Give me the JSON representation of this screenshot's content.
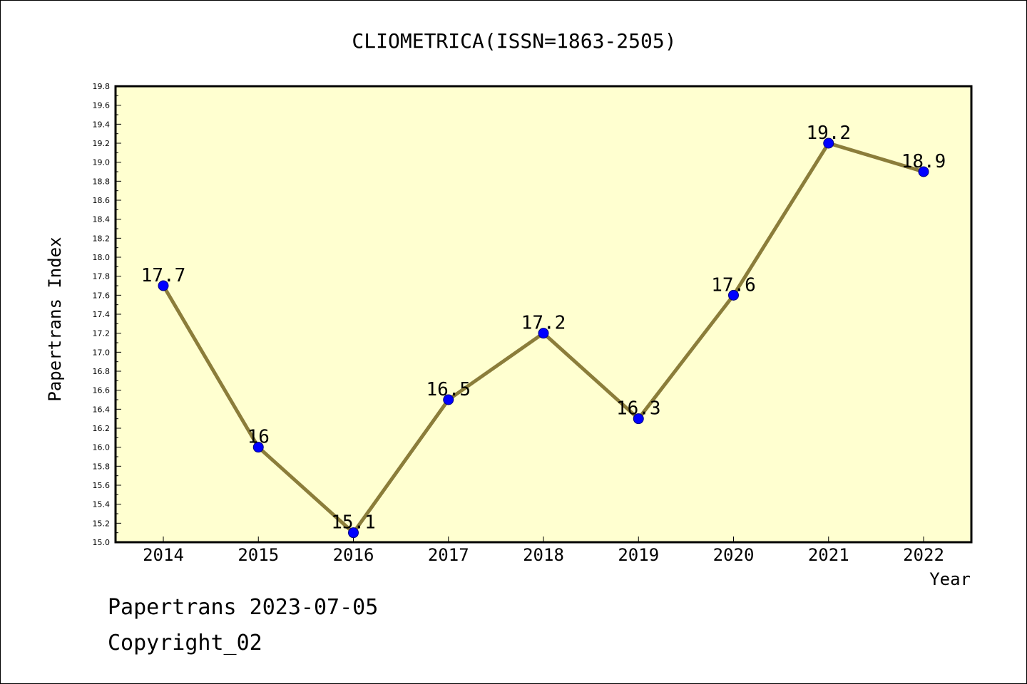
{
  "chart_data": {
    "type": "line",
    "title": "CLIOMETRICA(ISSN=1863-2505)",
    "xlabel": "Year",
    "ylabel": "Papertrans Index",
    "categories": [
      "2014",
      "2015",
      "2016",
      "2017",
      "2018",
      "2019",
      "2020",
      "2021",
      "2022"
    ],
    "series": [
      {
        "values": [
          17.7,
          16.0,
          15.1,
          16.5,
          17.2,
          16.3,
          17.6,
          19.2,
          18.9
        ]
      }
    ],
    "data_labels": [
      "17.7",
      "16",
      "15.1",
      "16.5",
      "17.2",
      "16.3",
      "17.6",
      "19.2",
      "18.9"
    ],
    "ylim": [
      15.0,
      19.8
    ],
    "yticks": [
      "15.0",
      "15.2",
      "15.4",
      "15.6",
      "15.8",
      "16.0",
      "16.2",
      "16.4",
      "16.6",
      "16.8",
      "17.0",
      "17.2",
      "17.4",
      "17.6",
      "17.8",
      "18.0",
      "18.2",
      "18.4",
      "18.6",
      "18.8",
      "19.0",
      "19.2",
      "19.4",
      "19.6",
      "19.8"
    ],
    "grid": false,
    "legend": "none",
    "colors": {
      "plot_background": "#ffffd0",
      "line": "#8b7d3a",
      "marker": "#0000ff",
      "marker_edge": "#000080"
    }
  },
  "footer": {
    "date_text": "Papertrans 2023-07-05",
    "copyright_text": "Copyright_02"
  }
}
